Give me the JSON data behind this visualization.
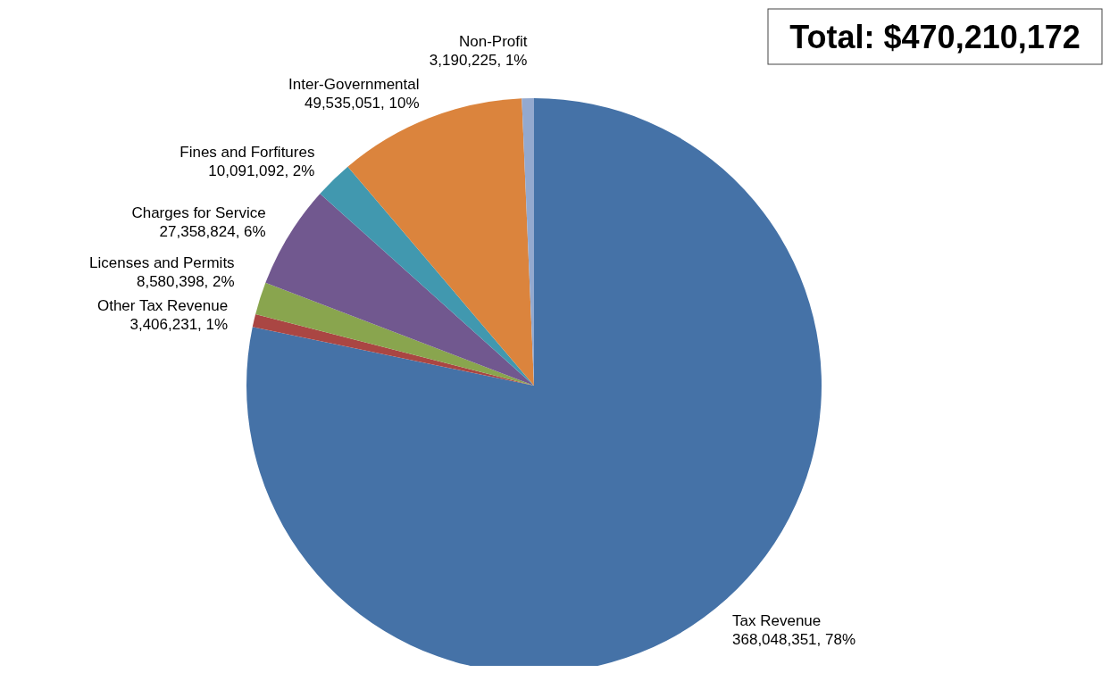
{
  "chart_data": {
    "type": "pie",
    "title": "Total: $470,210,172",
    "categories": [
      "Tax Revenue",
      "Other Tax Revenue",
      "Licenses and Permits",
      "Charges for Service",
      "Fines and Forfitures",
      "Inter-Governmental",
      "Non-Profit"
    ],
    "values": [
      368048351,
      3406231,
      8580398,
      27358824,
      10091092,
      49535051,
      3190225
    ],
    "value_labels": [
      "368,048,351, 78%",
      "3,406,231, 1%",
      "8,580,398, 2%",
      "27,358,824, 6%",
      "10,091,092, 2%",
      "49,535,051, 10%",
      "3,190,225, 1%"
    ],
    "colors": [
      "#4572a7",
      "#aa4643",
      "#89a54e",
      "#71588f",
      "#4198af",
      "#db843d",
      "#93a9cf"
    ]
  }
}
